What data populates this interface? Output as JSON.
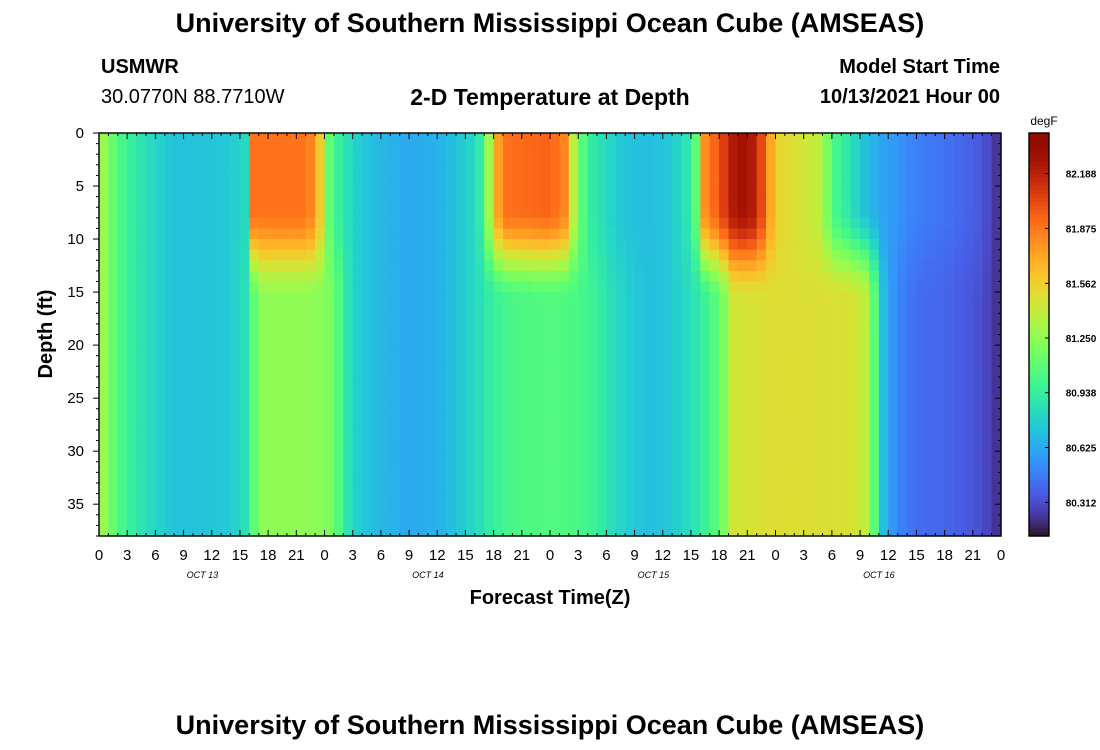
{
  "page": {
    "title": "University of Southern Mississippi Ocean Cube (AMSEAS)",
    "station": "USMWR",
    "location": "30.0770N  88.7710W",
    "plot_title": "2-D Temperature at Depth",
    "model_start_label": "Model Start Time",
    "model_start_value": "10/13/2021 Hour 00",
    "footer_title": "University of Southern Mississippi Ocean Cube (AMSEAS)"
  },
  "chart_data": {
    "type": "heatmap",
    "title": "2-D Temperature at Depth",
    "xlabel": "Forecast Time(Z)",
    "ylabel": "Depth (ft)",
    "x_tick_labels": [
      "0",
      "3",
      "6",
      "9",
      "12",
      "15",
      "18",
      "21",
      "0",
      "3",
      "6",
      "9",
      "12",
      "15",
      "18",
      "21",
      "0",
      "3",
      "6",
      "9",
      "12",
      "15",
      "18",
      "21",
      "0",
      "3",
      "6",
      "9",
      "12",
      "15",
      "18",
      "21",
      "0"
    ],
    "x_range_hours": [
      0,
      96
    ],
    "date_labels": [
      {
        "label": "OCT 13",
        "hour": 11
      },
      {
        "label": "OCT 14",
        "hour": 35
      },
      {
        "label": "OCT 15",
        "hour": 59
      },
      {
        "label": "OCT 16",
        "hour": 83
      }
    ],
    "y_ticks": [
      0,
      5,
      10,
      15,
      20,
      25,
      30,
      35
    ],
    "y_range_ft": [
      0,
      38
    ],
    "y_inverted": true,
    "colorbar": {
      "unit": "degF",
      "tick_labels": [
        "82.188",
        "81.875",
        "81.562",
        "81.250",
        "80.938",
        "80.625",
        "80.312"
      ],
      "tick_values": [
        82.188,
        81.875,
        81.562,
        81.25,
        80.938,
        80.625,
        80.312
      ],
      "range": [
        80.12,
        82.42
      ],
      "colormap": "turbo"
    },
    "surface_profile": [
      {
        "hour": 0,
        "value": 81.35
      },
      {
        "hour": 2,
        "value": 81.05
      },
      {
        "hour": 4,
        "value": 80.9
      },
      {
        "hour": 6,
        "value": 80.8
      },
      {
        "hour": 8,
        "value": 80.72
      },
      {
        "hour": 10,
        "value": 80.72
      },
      {
        "hour": 12,
        "value": 80.73
      },
      {
        "hour": 14,
        "value": 80.75
      },
      {
        "hour": 15.5,
        "value": 80.82
      },
      {
        "hour": 16,
        "value": 81.0
      },
      {
        "hour": 16.5,
        "value": 81.9
      },
      {
        "hour": 22,
        "value": 81.9
      },
      {
        "hour": 23.3,
        "value": 81.75
      },
      {
        "hour": 24,
        "value": 81.2
      },
      {
        "hour": 25.5,
        "value": 80.95
      },
      {
        "hour": 27,
        "value": 80.8
      },
      {
        "hour": 29,
        "value": 80.7
      },
      {
        "hour": 33,
        "value": 80.62
      },
      {
        "hour": 36,
        "value": 80.65
      },
      {
        "hour": 38,
        "value": 80.72
      },
      {
        "hour": 40,
        "value": 80.82
      },
      {
        "hour": 41,
        "value": 81.0
      },
      {
        "hour": 42,
        "value": 81.6
      },
      {
        "hour": 43,
        "value": 81.9
      },
      {
        "hour": 48,
        "value": 81.95
      },
      {
        "hour": 50,
        "value": 81.8
      },
      {
        "hour": 50.6,
        "value": 81.3
      },
      {
        "hour": 52,
        "value": 80.95
      },
      {
        "hour": 54,
        "value": 80.82
      },
      {
        "hour": 56,
        "value": 80.72
      },
      {
        "hour": 59,
        "value": 80.7
      },
      {
        "hour": 61,
        "value": 80.75
      },
      {
        "hour": 62.5,
        "value": 80.88
      },
      {
        "hour": 63.5,
        "value": 81.1
      },
      {
        "hour": 64.5,
        "value": 81.8
      },
      {
        "hour": 66,
        "value": 82.0
      },
      {
        "hour": 68,
        "value": 82.3
      },
      {
        "hour": 70,
        "value": 82.2
      },
      {
        "hour": 72,
        "value": 81.55
      },
      {
        "hour": 75,
        "value": 81.45
      },
      {
        "hour": 76.5,
        "value": 81.4
      },
      {
        "hour": 77.5,
        "value": 81.2
      },
      {
        "hour": 78,
        "value": 81.05
      },
      {
        "hour": 79.5,
        "value": 80.92
      },
      {
        "hour": 81,
        "value": 80.75
      },
      {
        "hour": 83,
        "value": 80.62
      },
      {
        "hour": 85,
        "value": 80.55
      },
      {
        "hour": 87,
        "value": 80.48
      },
      {
        "hour": 91,
        "value": 80.42
      },
      {
        "hour": 94,
        "value": 80.35
      },
      {
        "hour": 96,
        "value": 80.2
      }
    ],
    "deep_profile": [
      {
        "hour": 0,
        "value": 81.35
      },
      {
        "hour": 2,
        "value": 81.05
      },
      {
        "hour": 4,
        "value": 80.9
      },
      {
        "hour": 6,
        "value": 80.8
      },
      {
        "hour": 8,
        "value": 80.72
      },
      {
        "hour": 10,
        "value": 80.72
      },
      {
        "hour": 12,
        "value": 80.73
      },
      {
        "hour": 14,
        "value": 80.75
      },
      {
        "hour": 15.5,
        "value": 80.85
      },
      {
        "hour": 16.5,
        "value": 81.1
      },
      {
        "hour": 17,
        "value": 81.25
      },
      {
        "hour": 23,
        "value": 81.25
      },
      {
        "hour": 25,
        "value": 81.18
      },
      {
        "hour": 26,
        "value": 80.95
      },
      {
        "hour": 27,
        "value": 80.8
      },
      {
        "hour": 29,
        "value": 80.7
      },
      {
        "hour": 33,
        "value": 80.62
      },
      {
        "hour": 36,
        "value": 80.65
      },
      {
        "hour": 38,
        "value": 80.72
      },
      {
        "hour": 40,
        "value": 80.82
      },
      {
        "hour": 42,
        "value": 80.95
      },
      {
        "hour": 44,
        "value": 81.03
      },
      {
        "hour": 48,
        "value": 81.06
      },
      {
        "hour": 51,
        "value": 81.03
      },
      {
        "hour": 53,
        "value": 80.95
      },
      {
        "hour": 55,
        "value": 80.82
      },
      {
        "hour": 57,
        "value": 80.74
      },
      {
        "hour": 59,
        "value": 80.7
      },
      {
        "hour": 61,
        "value": 80.75
      },
      {
        "hour": 63,
        "value": 80.85
      },
      {
        "hour": 65,
        "value": 81.0
      },
      {
        "hour": 66.5,
        "value": 81.2
      },
      {
        "hour": 67.5,
        "value": 81.45
      },
      {
        "hour": 72,
        "value": 81.5
      },
      {
        "hour": 80,
        "value": 81.48
      },
      {
        "hour": 81.5,
        "value": 81.4
      },
      {
        "hour": 82.5,
        "value": 81.1
      },
      {
        "hour": 83,
        "value": 80.8
      },
      {
        "hour": 84,
        "value": 80.62
      },
      {
        "hour": 85,
        "value": 80.5
      },
      {
        "hour": 87,
        "value": 80.42
      },
      {
        "hour": 91,
        "value": 80.38
      },
      {
        "hour": 94,
        "value": 80.32
      },
      {
        "hour": 96,
        "value": 80.2
      }
    ]
  }
}
